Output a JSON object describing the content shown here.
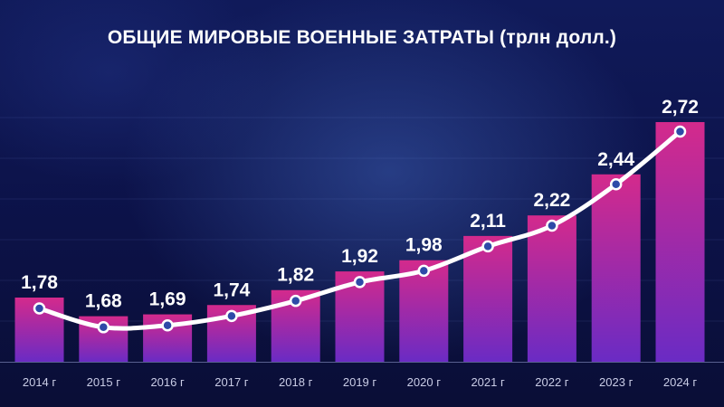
{
  "chart_data": {
    "type": "bar",
    "title": "ОБЩИЕ МИРОВЫЕ ВОЕННЫЕ ЗАТРАТЫ (трлн долл.)",
    "categories": [
      "2014 г",
      "2015 г",
      "2016 г",
      "2017 г",
      "2018 г",
      "2019 г",
      "2020 г",
      "2021 г",
      "2022 г",
      "2023 г",
      "2024 г"
    ],
    "values": [
      1.78,
      1.68,
      1.69,
      1.74,
      1.82,
      1.92,
      1.98,
      2.11,
      2.22,
      2.44,
      2.72
    ],
    "value_labels": [
      "1,78",
      "1,68",
      "1,69",
      "1,74",
      "1,82",
      "1,92",
      "1,98",
      "2,11",
      "2,22",
      "2,44",
      "2,72"
    ],
    "overlay": "line-with-markers",
    "grid": true,
    "legend": "none",
    "colors": {
      "bar_top": "#d42a8c",
      "bar_bottom": "#6a2bc4",
      "line": "#ffffff",
      "marker_fill": "#2e4aa8",
      "marker_stroke": "#ffffff"
    }
  }
}
